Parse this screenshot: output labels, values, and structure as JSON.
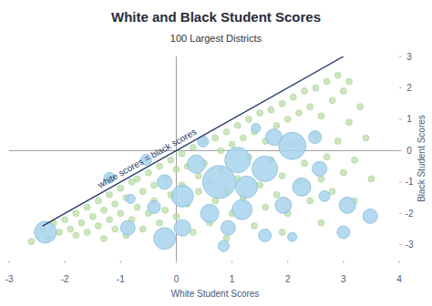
{
  "chart_data": {
    "type": "scatter",
    "title": "White and Black Student Scores",
    "subtitle": "100 Largest Districts",
    "x_label": "White Student Scores",
    "y_label": "Black Student Scores",
    "xlim": [
      -3,
      4
    ],
    "ylim": [
      -3.5,
      3
    ],
    "xticks": [
      -3,
      -2,
      -1,
      0,
      1,
      2,
      3,
      4
    ],
    "yticks": [
      -3,
      -2,
      -1,
      0,
      1,
      2,
      3
    ],
    "grid": false,
    "reference_line": {
      "x": [
        -2.4,
        3
      ],
      "y": [
        -2.4,
        3
      ],
      "label": "white scores = black scores"
    },
    "series": [
      {
        "color": "#b6dca3",
        "marker": "circle",
        "x": [
          -2.4,
          -2.2,
          -2.1,
          -2.0,
          -1.9,
          -1.8,
          -1.8,
          -1.7,
          -1.6,
          -1.6,
          -1.5,
          -1.4,
          -1.4,
          -1.3,
          -1.3,
          -1.2,
          -1.2,
          -1.1,
          -1.1,
          -1.0,
          -1.0,
          -0.9,
          -0.9,
          -0.8,
          -0.8,
          -0.7,
          -0.7,
          -0.6,
          -0.6,
          -0.5,
          -0.5,
          -0.4,
          -0.4,
          -0.3,
          -0.3,
          -0.2,
          -0.2,
          -0.1,
          -0.1,
          0.0,
          0.0,
          0.1,
          0.1,
          0.2,
          0.2,
          0.3,
          0.3,
          0.4,
          0.4,
          0.5,
          0.5,
          0.6,
          0.6,
          0.7,
          0.7,
          0.8,
          0.8,
          0.9,
          0.9,
          1.0,
          1.0,
          1.1,
          1.1,
          1.2,
          1.2,
          1.3,
          1.3,
          1.4,
          1.4,
          1.5,
          1.5,
          1.6,
          1.6,
          1.7,
          1.7,
          1.8,
          1.8,
          1.9,
          1.9,
          2.0,
          2.0,
          2.1,
          2.1,
          2.2,
          2.2,
          2.3,
          2.3,
          2.4,
          2.4,
          2.5,
          2.5,
          2.6,
          2.6,
          2.7,
          2.7,
          2.8,
          2.8,
          2.9,
          2.9,
          3.0,
          3.0,
          3.1,
          3.1,
          3.2,
          3.3,
          3.4,
          3.5,
          -2.6,
          -2.3,
          0.9,
          1.9,
          2.6,
          3.2
        ],
        "values": [
          -2.5,
          -2.3,
          -2.6,
          -2.2,
          -2.5,
          -2.0,
          -2.7,
          -2.3,
          -1.8,
          -2.6,
          -2.1,
          -1.6,
          -2.4,
          -1.9,
          -2.8,
          -1.4,
          -2.2,
          -1.7,
          -2.5,
          -1.2,
          -2.0,
          -1.5,
          -2.7,
          -1.0,
          -2.2,
          -1.8,
          -0.9,
          -1.3,
          -2.5,
          -0.7,
          -2.0,
          -1.1,
          -1.6,
          -0.5,
          -2.3,
          -0.9,
          -1.9,
          -0.3,
          -1.4,
          -0.6,
          -2.1,
          -0.1,
          -1.1,
          -0.5,
          -1.7,
          0.1,
          -2.6,
          -0.8,
          -1.3,
          0.3,
          -0.4,
          -1.0,
          -2.3,
          0.4,
          -1.6,
          0.0,
          -0.6,
          0.6,
          -1.3,
          0.2,
          -2.0,
          0.8,
          -0.9,
          0.4,
          -1.5,
          1.0,
          -0.2,
          0.6,
          -2.4,
          1.2,
          -1.1,
          0.3,
          -1.8,
          1.3,
          -0.3,
          0.8,
          -1.4,
          1.5,
          -0.8,
          1.0,
          -2.0,
          1.7,
          0.2,
          1.2,
          -1.0,
          1.9,
          -0.4,
          1.4,
          -1.6,
          2.0,
          0.5,
          1.1,
          -0.9,
          2.2,
          -0.2,
          1.6,
          -1.3,
          2.4,
          0.3,
          1.9,
          -0.7,
          2.2,
          0.9,
          -0.3,
          1.4,
          0.4,
          -0.9,
          -2.9,
          -2.8,
          -2.8,
          -2.6,
          -2.3,
          -1.6
        ]
      },
      {
        "color": "#a8d4ec",
        "marker": "bubble",
        "x": [
          -2.35,
          -0.4,
          2.08,
          1.59,
          0.77,
          3.07,
          3.48,
          3.0,
          1.59,
          -0.21,
          -0.87,
          -1.2,
          -0.82,
          0.11,
          0.6,
          1.18,
          2.25,
          2.57,
          1.1,
          0.36,
          1.75,
          2.49,
          0.11,
          -0.21,
          1.26,
          1.92,
          0.85,
          0.48,
          1.43,
          -0.54,
          2.66,
          2.08,
          0.93
        ],
        "values": [
          -2.6,
          -1.8,
          0.15,
          -0.58,
          -1.0,
          -1.74,
          -2.09,
          -2.6,
          -2.7,
          -2.8,
          -2.46,
          -0.87,
          -1.54,
          -2.46,
          -2.0,
          -1.88,
          -1.16,
          -0.58,
          -0.3,
          -0.43,
          0.43,
          0.43,
          -1.45,
          -1.0,
          -1.16,
          -1.74,
          -3.04,
          0.29,
          0.72,
          -0.29,
          -1.45,
          -2.75,
          -2.46
        ],
        "sizes": [
          144,
          49,
          225,
          196,
          324,
          81,
          64,
          49,
          49,
          144,
          64,
          36,
          25,
          81,
          100,
          121,
          100,
          64,
          196,
          100,
          81,
          49,
          144,
          64,
          144,
          81,
          36,
          36,
          25,
          36,
          36,
          25,
          64
        ]
      }
    ]
  }
}
